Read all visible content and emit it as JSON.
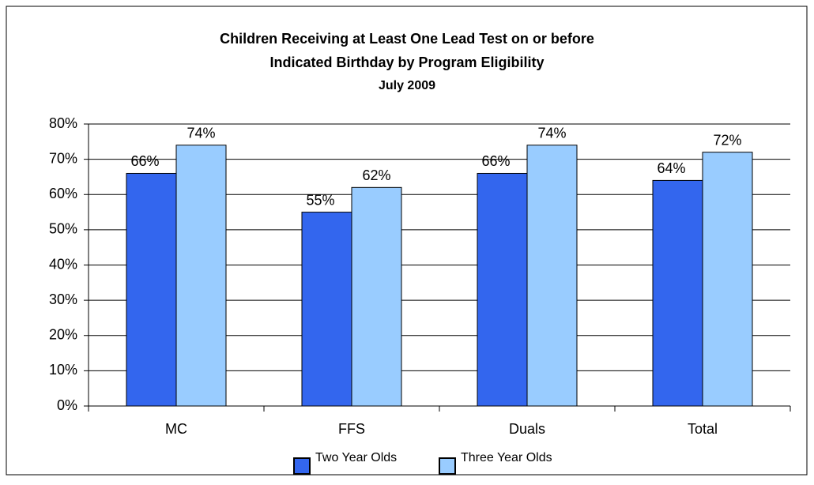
{
  "chart_data": {
    "type": "bar",
    "title": [
      "Children Receiving at Least One Lead Test on or before",
      "Indicated Birthday by Program Eligibility"
    ],
    "subtitle": "July  2009",
    "categories": [
      "MC",
      "FFS",
      "Duals",
      "Total"
    ],
    "series": [
      {
        "name": "Two Year Olds",
        "color": "#3366ee",
        "values": [
          66,
          55,
          66,
          64
        ],
        "value_labels": [
          "66%",
          "55%",
          "66%",
          "64%"
        ]
      },
      {
        "name": "Three Year Olds",
        "color": "#99ccff",
        "values": [
          74,
          62,
          74,
          72
        ],
        "value_labels": [
          "74%",
          "62%",
          "74%",
          "72%"
        ]
      }
    ],
    "ylim": [
      0,
      80
    ],
    "yticks": [
      {
        "value": 0,
        "label": "0%"
      },
      {
        "value": 10,
        "label": "10%"
      },
      {
        "value": 20,
        "label": "20%"
      },
      {
        "value": 30,
        "label": "30%"
      },
      {
        "value": 40,
        "label": "40%"
      },
      {
        "value": 50,
        "label": "50%"
      },
      {
        "value": 60,
        "label": "60%"
      },
      {
        "value": 70,
        "label": "70%"
      },
      {
        "value": 80,
        "label": "80%"
      }
    ],
    "grid": true,
    "legend": "bottom"
  }
}
